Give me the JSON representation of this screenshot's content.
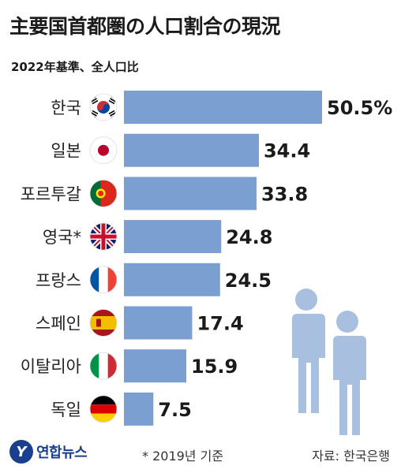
{
  "title": "主要国首都圏の人口割合の現況",
  "subtitle": "2022年基準、全人口比",
  "chart_data": {
    "type": "bar",
    "orientation": "horizontal",
    "categories": [
      "한국",
      "일본",
      "포르투갈",
      "영국*",
      "프랑스",
      "스페인",
      "이탈리아",
      "독일"
    ],
    "flags": [
      "korea",
      "japan",
      "portugal",
      "uk",
      "france",
      "spain",
      "italy",
      "germany"
    ],
    "values": [
      50.5,
      34.4,
      33.8,
      24.8,
      24.5,
      17.4,
      15.9,
      7.5
    ],
    "value_labels": [
      "50.5%",
      "34.4",
      "33.8",
      "24.8",
      "24.5",
      "17.4",
      "15.9",
      "7.5"
    ],
    "xlim": [
      0,
      50.5
    ],
    "bar_color": "#7b9fd0",
    "grid": false,
    "legend": "none"
  },
  "footer": {
    "logo_text": "연합뉴스",
    "note": "* 2019년 기준",
    "source": "자료: 한국은행"
  }
}
